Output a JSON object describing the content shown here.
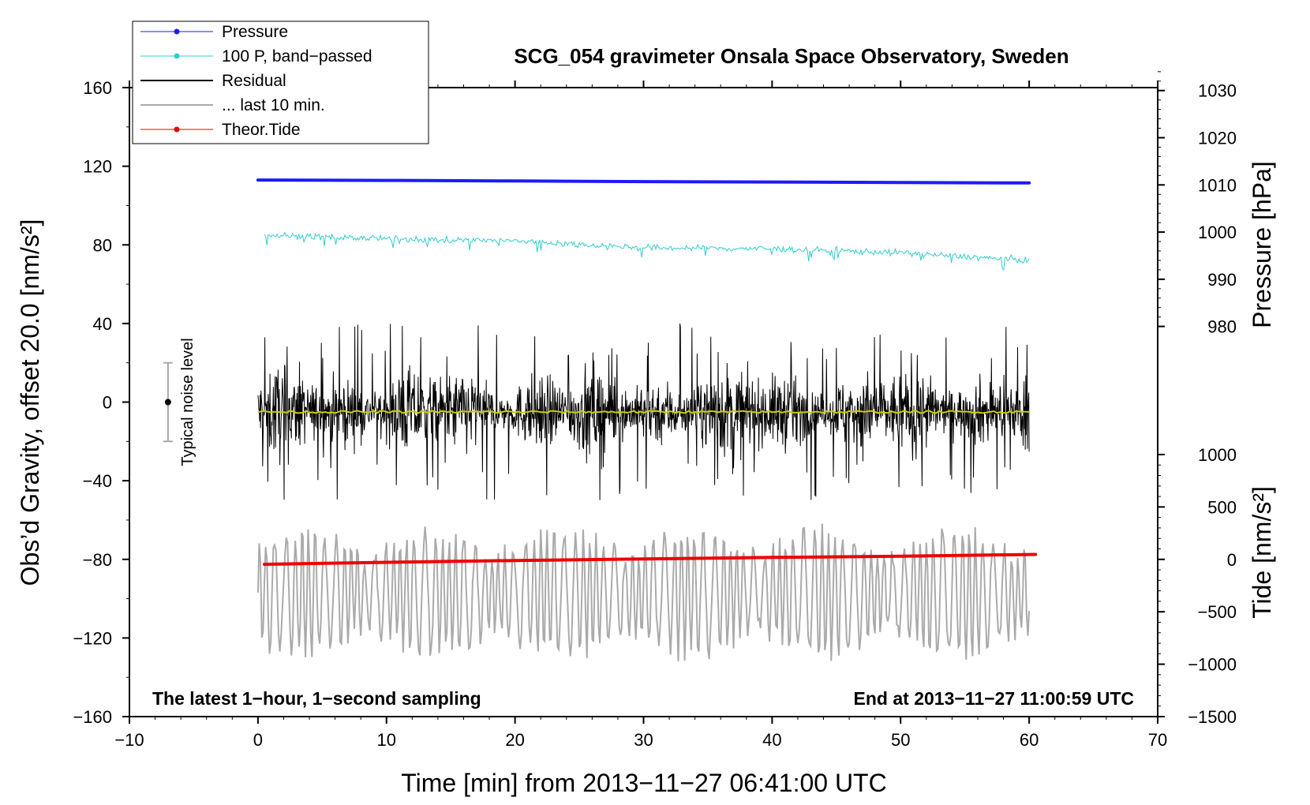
{
  "chart_data": {
    "type": "line",
    "title": "SCG_054 gravimeter Onsala Space Observatory, Sweden",
    "xlabel": "Time [min] from 2013−11−27 06:41:00 UTC",
    "ylabel": "Obs’d Gravity, offset 20.0 [nm/s²]",
    "ylabel_right_top": "Pressure [hPa]",
    "ylabel_right_bottom": "Tide [nm/s²]",
    "xlim": [
      -10,
      70
    ],
    "ylim": [
      -160,
      160
    ],
    "x_ticks": [
      -10,
      0,
      10,
      20,
      30,
      40,
      50,
      60,
      70
    ],
    "x_tick_labels": [
      "−10",
      "0",
      "10",
      "20",
      "30",
      "40",
      "50",
      "60",
      "70"
    ],
    "y_ticks": [
      -160,
      -120,
      -80,
      -40,
      0,
      40,
      80,
      120,
      160
    ],
    "y_tick_labels": [
      "−160",
      "−120",
      "−80",
      "−40",
      "0",
      "40",
      "80",
      "120",
      "160"
    ],
    "pressure_axis": {
      "ticks": [
        980,
        990,
        1000,
        1010,
        1020,
        1030
      ],
      "tick_labels": [
        "980",
        "990",
        "1000",
        "1010",
        "1020",
        "1030"
      ],
      "gravity_at_ref": 86.5,
      "ref_value": 1000,
      "gravity_per_unit": 2.4
    },
    "tide_axis": {
      "ticks": [
        -1500,
        -1000,
        -500,
        0,
        500,
        1000
      ],
      "tick_labels": [
        "−1500",
        "−1000",
        "−500",
        "0",
        "500",
        "1000"
      ],
      "gravity_at_ref": -160,
      "ref_value": -1500,
      "gravity_per_unit": 0.05333
    },
    "legend": {
      "position": "top-left",
      "entries": [
        {
          "label": "Pressure",
          "color": "#1a1aff",
          "marker": true
        },
        {
          "label": "100 P, band−passed",
          "color": "#33cccc",
          "marker": true
        },
        {
          "label": "Residual",
          "color": "#000000",
          "marker": false
        },
        {
          "label": "... last 10 min.",
          "color": "#aaaaaa",
          "marker": false
        },
        {
          "label": "Theor.Tide",
          "color": "#ee0000",
          "marker": true
        }
      ]
    },
    "series": [
      {
        "name": "Pressure",
        "color": "#1a1aff",
        "x": [
          0,
          10,
          20,
          30,
          40,
          50,
          60
        ],
        "y": [
          113,
          112.8,
          112.5,
          112.2,
          112,
          111.7,
          111.5
        ]
      },
      {
        "name": "100 P, band−passed",
        "color": "#33cccc",
        "x": [
          0.5,
          10,
          20,
          30,
          40,
          50,
          60
        ],
        "y": [
          85,
          83,
          82,
          78.5,
          78,
          76,
          72
        ],
        "noise_amplitude": 1.6
      },
      {
        "name": "Residual",
        "color": "#000000",
        "x_range": [
          0,
          60
        ],
        "center": -5,
        "noise_amplitude": 20,
        "peak_range": [
          -55,
          44
        ]
      },
      {
        "name": "Residual mean",
        "color": "#cccc00",
        "x_range": [
          0,
          60
        ],
        "value": -5
      },
      {
        "name": "... last 10 min.",
        "color": "#aaaaaa",
        "x_range": [
          0,
          60
        ],
        "center": -97,
        "range": [
          -140,
          -60
        ]
      },
      {
        "name": "Theor.Tide",
        "color": "#ee0000",
        "x": [
          0.5,
          10,
          20,
          30,
          40,
          50,
          60.5
        ],
        "y": [
          -82.5,
          -81.5,
          -80.6,
          -79.8,
          -79,
          -78.4,
          -77.5
        ]
      }
    ],
    "annotations": {
      "bottom_left": "The latest 1−hour, 1−second sampling",
      "bottom_right": "End at 2013−11−27 11:00:59 UTC",
      "noise_label": "Typical noise level",
      "noise_bar": {
        "x": -7,
        "center": 0,
        "low": -20,
        "high": 20
      }
    }
  }
}
